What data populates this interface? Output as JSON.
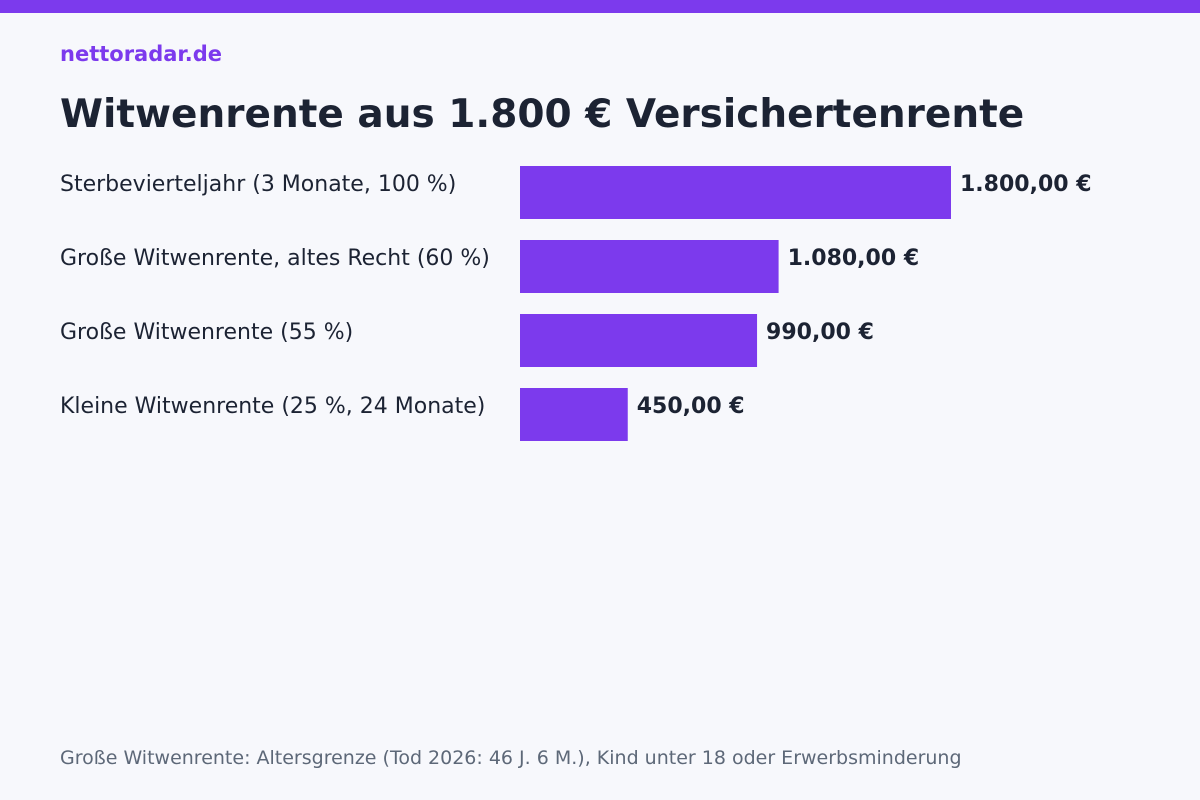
{
  "brand": {
    "name": "nettoradar.de"
  },
  "colors": {
    "accent": "#7c3aed",
    "text": "#1c2333",
    "muted": "#5d6878",
    "background": "#f7f8fc"
  },
  "chart_data": {
    "type": "bar",
    "orientation": "horizontal",
    "title": "Witwenrente aus 1.800 € Versichertenrente",
    "xlabel": "",
    "ylabel": "",
    "categories": [
      "Sterbevierteljahr (3 Monate, 100 %)",
      "Große Witwenrente, altes Recht (60 %)",
      "Große Witwenrente (55 %)",
      "Kleine Witwenrente (25 %, 24 Monate)"
    ],
    "values": [
      1800,
      1080,
      990,
      450
    ],
    "value_labels": [
      "1.800,00 €",
      "1.080,00 €",
      "990,00 €",
      "450,00 €"
    ],
    "xlim": [
      0,
      1800
    ],
    "grid": false,
    "legend": "none"
  },
  "footnote": "Große Witwenrente: Altersgrenze (Tod 2026: 46 J. 6 M.), Kind unter 18 oder Erwerbsminderung"
}
